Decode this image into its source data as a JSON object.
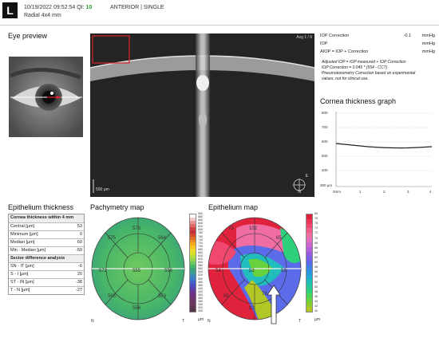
{
  "header": {
    "eye": "L",
    "datetime": "10/19/2022 09:52:54",
    "qi_label": "QI:",
    "qi_value": "10",
    "mode": "ANTERIOR | SINGLE",
    "scan": "Radial  4x4 mm"
  },
  "eye_preview": {
    "title": "Eye preview"
  },
  "oct": {
    "avg": "Avg 1 / 8",
    "scale": "500 µm",
    "orient_right": "E",
    "orient_bottom": "N"
  },
  "iop": {
    "rows": [
      {
        "label": "IOP Correction",
        "value": "-0.1",
        "unit": "mmHg"
      },
      {
        "label": "IOP",
        "value": "",
        "unit": "mmHg"
      },
      {
        "label": "AIOP = IOP + Correction",
        "value": "",
        "unit": "mmHg"
      }
    ],
    "note1": "Adjusted IOP = IOP measured + IOP Correction",
    "note2": "IOP Correction = 0.045 * (554 - CCT)",
    "note3": "Pneumotonometry Correction based on experimental",
    "note4": "values, not for clinical use."
  },
  "cornea_graph": {
    "title": "Cornea thickness graph",
    "y_ticks": [
      "800",
      "700",
      "600",
      "500",
      "400",
      "300 µm"
    ],
    "x_ticks": [
      "0mm",
      "1",
      "2",
      "3",
      "4"
    ]
  },
  "epithelium": {
    "title": "Epithelium thickness",
    "section1": "Cornea thickness within 4 mm",
    "rows1": [
      {
        "label": "Central [µm]",
        "value": "53"
      },
      {
        "label": "Minimum [µm]",
        "value": "0"
      },
      {
        "label": "Median [µm]",
        "value": "60"
      },
      {
        "label": "Min - Median [µm]",
        "value": "-59"
      }
    ],
    "section2": "Sector difference analysis",
    "rows2": [
      {
        "label": "SN - IT [µm]",
        "value": "-6"
      },
      {
        "label": "S - I [µm]",
        "value": "20"
      },
      {
        "label": "ST - IN [µm]",
        "value": "-38"
      },
      {
        "label": "T - N [µm]",
        "value": "-27"
      }
    ]
  },
  "pachy": {
    "title": "Pachymetry map",
    "values": [
      "573",
      "575",
      "564",
      "572",
      "555",
      "556",
      "565",
      "553",
      "558"
    ],
    "n": "N",
    "t": "T",
    "scale": [
      "900",
      "880",
      "860",
      "840",
      "820",
      "800",
      "780",
      "760",
      "740",
      "720",
      "700",
      "680",
      "660",
      "640",
      "620",
      "600",
      "580",
      "560",
      "540",
      "520",
      "500",
      "480",
      "460",
      "440",
      "420",
      "400",
      "380",
      "360",
      "340",
      "320",
      "300"
    ],
    "unit": "µm"
  },
  "epi_map": {
    "title": "Epithelium map",
    "values": [
      "73",
      "102",
      "65",
      "54",
      "53",
      "53",
      "95",
      "82",
      "78"
    ],
    "n": "N",
    "t": "T",
    "scale": [
      "80",
      "78",
      "76",
      "74",
      "72",
      "70",
      "68",
      "66",
      "64",
      "62",
      "60",
      "58",
      "56",
      "54",
      "52",
      "50",
      "48",
      "46",
      "44",
      "42",
      "40"
    ],
    "unit": "µm"
  },
  "colors": {
    "qi": "#2c9a2c",
    "pachy_scale": [
      "#ffffff",
      "#f3c8c8",
      "#e99595",
      "#dc6c6c",
      "#d04444",
      "#c92f3e",
      "#d44a2e",
      "#e06a28",
      "#ec8c22",
      "#f4a91e",
      "#f8c523",
      "#f0d92a",
      "#d8df2c",
      "#b8de3c",
      "#95d552",
      "#6fc85f",
      "#48b669",
      "#3aa378",
      "#3a9b96",
      "#3a8cb4",
      "#3c79c9",
      "#3f62cc",
      "#4b4dbf",
      "#5840ad",
      "#653898",
      "#6b3486",
      "#6e3275",
      "#6e3468",
      "#6b375d",
      "#5e3652",
      "#533447"
    ],
    "epi_scale": [
      "#e1223c",
      "#ea3556",
      "#f0486e",
      "#f45c8a",
      "#ef6da3",
      "#e26cba",
      "#cf66cd",
      "#b55fdb",
      "#975ae3",
      "#7b5ee6",
      "#5b6bea",
      "#3d80e6",
      "#2b95dd",
      "#22a9d1",
      "#21bdbd",
      "#25c89f",
      "#2fd07c",
      "#49d358",
      "#68d23c",
      "#8dcd2b",
      "#b2c625"
    ]
  }
}
